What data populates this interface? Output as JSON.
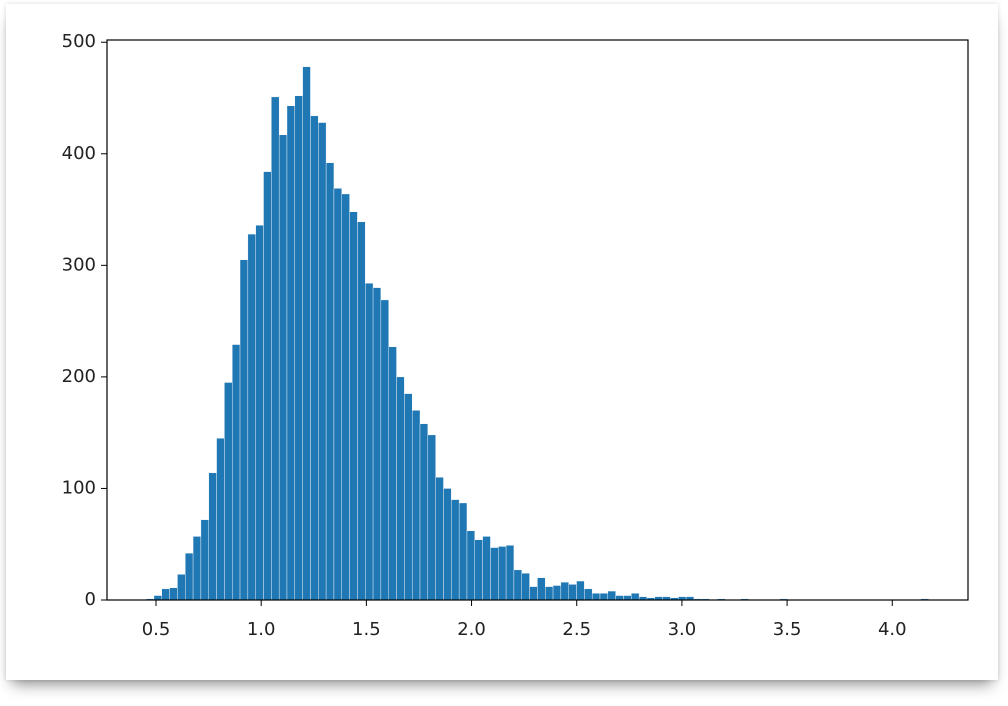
{
  "chart_data": {
    "type": "histogram",
    "bins": [
      0.453,
      0.4902,
      0.5274,
      0.5646,
      0.6018,
      0.639,
      0.6762,
      0.7134,
      0.7506,
      0.7878,
      0.825,
      0.8622,
      0.8994,
      0.9366,
      0.9738,
      1.011,
      1.0482,
      1.0854,
      1.1226,
      1.1598,
      1.197,
      1.2342,
      1.2714,
      1.3086,
      1.3458,
      1.383,
      1.4202,
      1.4574,
      1.4946,
      1.5318,
      1.569,
      1.6062,
      1.6434,
      1.6806,
      1.7178,
      1.755,
      1.7922,
      1.8294,
      1.8666,
      1.9038,
      1.941,
      1.9782,
      2.0154,
      2.0526,
      2.0898,
      2.127,
      2.1642,
      2.2014,
      2.2386,
      2.2758,
      2.313,
      2.3502,
      2.3874,
      2.4246,
      2.4618,
      2.499,
      2.5362,
      2.5734,
      2.6106,
      2.6478,
      2.685,
      2.7222,
      2.7594,
      2.7966,
      2.8338,
      2.871,
      2.9082,
      2.9454,
      2.9826,
      3.0198,
      3.057,
      3.0942,
      3.1314,
      3.1686,
      3.2058,
      3.243,
      3.2802,
      3.3174,
      3.3546,
      3.3918,
      3.429,
      3.4662,
      3.5034,
      3.5406,
      3.5778,
      3.615,
      3.6522,
      3.6894,
      3.7266,
      3.7638,
      3.801,
      3.8382,
      3.8754,
      3.9126,
      3.9498,
      3.987,
      4.0242,
      4.0614,
      4.0986,
      4.1358,
      4.173
    ],
    "counts": [
      1,
      4,
      10,
      11,
      23,
      42,
      57,
      72,
      114,
      145,
      195,
      229,
      305,
      328,
      336,
      384,
      451,
      417,
      443,
      452,
      478,
      434,
      428,
      392,
      369,
      364,
      348,
      339,
      284,
      280,
      269,
      227,
      200,
      185,
      170,
      158,
      148,
      110,
      100,
      90,
      87,
      62,
      54,
      57,
      47,
      48,
      49,
      27,
      24,
      12,
      20,
      12,
      13,
      16,
      14,
      17,
      10,
      6,
      6,
      8,
      4,
      4,
      6,
      3,
      2,
      3,
      3,
      2,
      3,
      3,
      1,
      1,
      0,
      1,
      0,
      0,
      1,
      0,
      0,
      0,
      0,
      1,
      0,
      0,
      0,
      0,
      0,
      0,
      0,
      0,
      0,
      0,
      0,
      0,
      0,
      0,
      0,
      0,
      0,
      1
    ],
    "color": "#1f77b4",
    "xlim": [
      0.267,
      4.36
    ],
    "ylim": [
      0,
      502
    ],
    "xticks": [
      0.5,
      {
        "value": 1,
        "label": "1.0"
      },
      1.5,
      {
        "value": 2,
        "label": "2.0"
      },
      2.5,
      {
        "value": 3,
        "label": "3.0"
      },
      3.5,
      {
        "value": 4,
        "label": "4.0"
      }
    ],
    "yticks": [
      0,
      100,
      200,
      300,
      400,
      500
    ]
  }
}
